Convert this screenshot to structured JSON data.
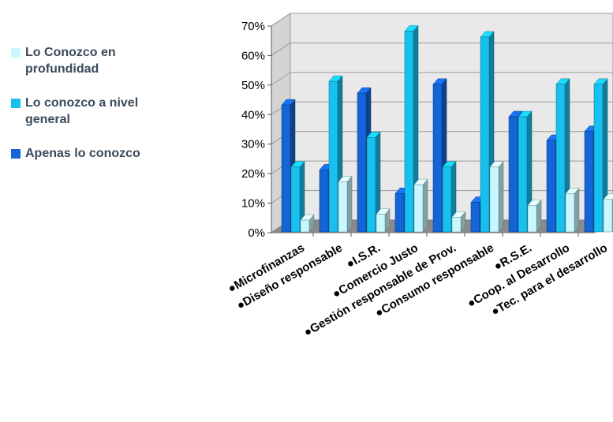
{
  "chart_data": {
    "type": "bar",
    "categories": [
      "●Microfinanzas",
      "●Diseño responsable",
      "●I.S.R.",
      "●Comercio Justo",
      "●Gestión responsable de Prov.",
      "●Consumo responsable",
      "●R.S.E.",
      "●Coop. al Desarrollo",
      "●Tec. para el desarrollo"
    ],
    "series": [
      {
        "name": "Apenas lo conozco",
        "color": "#1565d8",
        "values": [
          43,
          21,
          47,
          13,
          50,
          10,
          39,
          31,
          34
        ]
      },
      {
        "name": "Lo conozco a nivel general",
        "color": "#17c0ee",
        "values": [
          22,
          51,
          32,
          68,
          22,
          66,
          39,
          50,
          50
        ]
      },
      {
        "name": "Lo Conozco en profundidad",
        "color": "#c8f8ff",
        "values": [
          4,
          17,
          6,
          16,
          5,
          22,
          9,
          13,
          11
        ]
      }
    ],
    "yticks": [
      "0%",
      "10%",
      "20%",
      "30%",
      "40%",
      "50%",
      "60%",
      "70%"
    ],
    "ylim": [
      0,
      70
    ],
    "grid": true,
    "legend_position": "left",
    "legend_items": [
      {
        "label": "Lo Conozco en profundidad",
        "color": "#c8f8ff"
      },
      {
        "label": "Lo conozco a nivel general",
        "color": "#17c0ee"
      },
      {
        "label": "Apenas lo conozco",
        "color": "#1565d8"
      }
    ]
  }
}
